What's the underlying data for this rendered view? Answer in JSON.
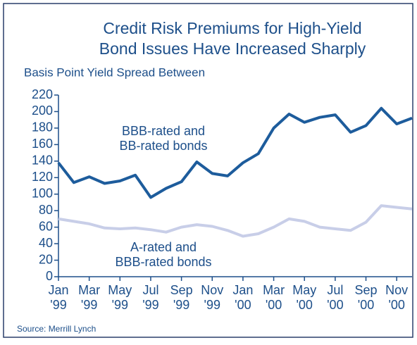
{
  "chart_data": {
    "type": "line",
    "title": "Credit Risk Premiums for High-Yield Bond Issues Have Increased Sharply",
    "y_label": "Basis Point Yield Spread Between",
    "source": "Source: Merrill Lynch",
    "categories": [
      "Jan '99",
      null,
      "Mar '99",
      null,
      "May '99",
      null,
      "Jul '99",
      null,
      "Sep '99",
      null,
      "Nov '99",
      null,
      "Jan '00",
      null,
      "Mar '00",
      null,
      "May '00",
      null,
      "Jul '00",
      null,
      "Sep '00",
      null,
      "Nov '00",
      null
    ],
    "series": [
      {
        "name": "BBB-rated and BB-rated bonds",
        "color": "#1d5c9c",
        "values": [
          138,
          114,
          121,
          113,
          116,
          123,
          96,
          107,
          115,
          139,
          125,
          122,
          138,
          149,
          180,
          197,
          187,
          193,
          196,
          175,
          183,
          204,
          185,
          192
        ]
      },
      {
        "name": "A-rated and BBB-rated bonds",
        "color": "#c8cee8",
        "values": [
          70,
          67,
          64,
          59,
          58,
          59,
          57,
          54,
          60,
          63,
          61,
          56,
          49,
          52,
          60,
          70,
          67,
          60,
          58,
          56,
          66,
          86,
          84,
          82
        ]
      }
    ],
    "ylim": [
      0,
      220
    ],
    "yticks": [
      0,
      20,
      40,
      60,
      80,
      100,
      120,
      140,
      160,
      180,
      200,
      220
    ]
  }
}
